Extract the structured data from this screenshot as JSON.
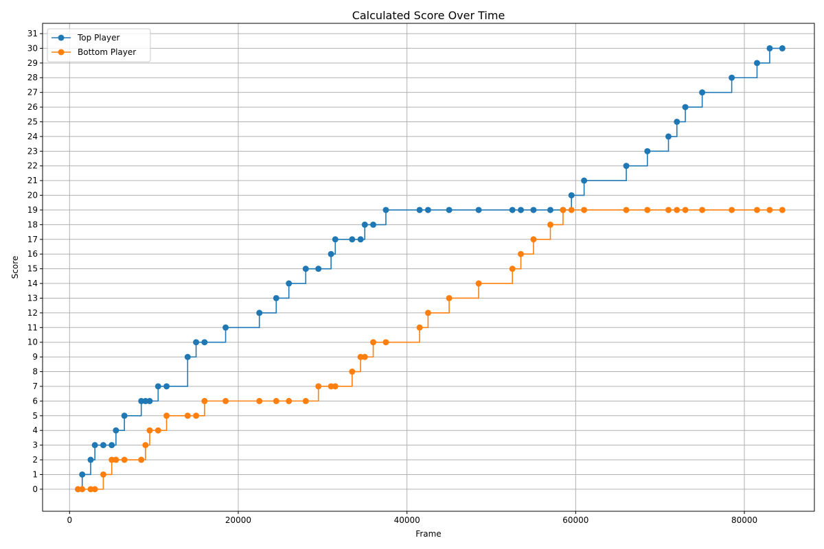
{
  "chart_data": {
    "type": "line",
    "step": "post",
    "title": "Calculated Score Over Time",
    "xlabel": "Frame",
    "ylabel": "Score",
    "xlim": [
      -3200,
      88300
    ],
    "ylim": [
      -1.5,
      31.7
    ],
    "xticks": [
      0,
      20000,
      40000,
      60000,
      80000
    ],
    "yticks": [
      0,
      1,
      2,
      3,
      4,
      5,
      6,
      7,
      8,
      9,
      10,
      11,
      12,
      13,
      14,
      15,
      16,
      17,
      18,
      19,
      20,
      21,
      22,
      23,
      24,
      25,
      26,
      27,
      28,
      29,
      30,
      31
    ],
    "grid": true,
    "legend_position": "top-left",
    "series": [
      {
        "name": "Top Player",
        "color": "#1f77b4",
        "x": [
          1000,
          1500,
          2500,
          3000,
          4000,
          5000,
          5500,
          6500,
          8500,
          9000,
          9500,
          10500,
          11500,
          14000,
          15000,
          16000,
          18500,
          22500,
          24500,
          26000,
          28000,
          29500,
          31000,
          31500,
          33500,
          34500,
          35000,
          36000,
          37500,
          41500,
          42500,
          45000,
          48500,
          52500,
          53500,
          55000,
          57000,
          58500,
          59500,
          61000,
          66000,
          68500,
          71000,
          72000,
          73000,
          75000,
          78500,
          81500,
          83000,
          84500
        ],
        "y": [
          0,
          1,
          2,
          3,
          3,
          3,
          4,
          5,
          6,
          6,
          6,
          7,
          7,
          9,
          10,
          10,
          11,
          12,
          13,
          14,
          15,
          15,
          16,
          17,
          17,
          17,
          18,
          18,
          19,
          19,
          19,
          19,
          19,
          19,
          19,
          19,
          19,
          19,
          20,
          21,
          22,
          23,
          24,
          25,
          26,
          27,
          28,
          29,
          30,
          30
        ]
      },
      {
        "name": "Bottom Player",
        "color": "#ff7f0e",
        "x": [
          1000,
          1500,
          2500,
          3000,
          4000,
          5000,
          5500,
          6500,
          8500,
          9000,
          9500,
          10500,
          11500,
          14000,
          15000,
          16000,
          18500,
          22500,
          24500,
          26000,
          28000,
          29500,
          31000,
          31500,
          33500,
          34500,
          35000,
          36000,
          37500,
          41500,
          42500,
          45000,
          48500,
          52500,
          53500,
          55000,
          57000,
          58500,
          59500,
          61000,
          66000,
          68500,
          71000,
          72000,
          73000,
          75000,
          78500,
          81500,
          83000,
          84500
        ],
        "y": [
          0,
          0,
          0,
          0,
          1,
          2,
          2,
          2,
          2,
          3,
          4,
          4,
          5,
          5,
          5,
          6,
          6,
          6,
          6,
          6,
          6,
          7,
          7,
          7,
          8,
          9,
          9,
          10,
          10,
          11,
          12,
          13,
          14,
          15,
          16,
          17,
          18,
          19,
          19,
          19,
          19,
          19,
          19,
          19,
          19,
          19,
          19,
          19,
          19,
          19
        ]
      }
    ]
  }
}
